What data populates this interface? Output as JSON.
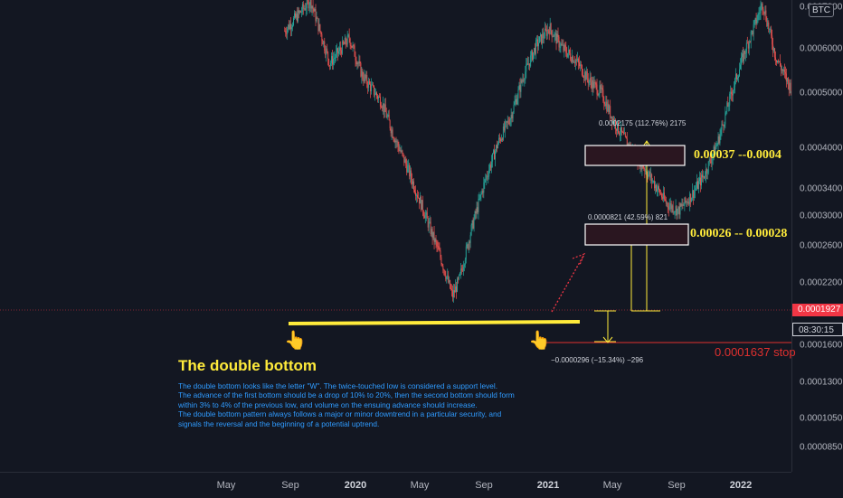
{
  "symbol_badge": "BTC",
  "chart_data": {
    "type": "candlestick",
    "y_axis_scale": "log",
    "ylim": [
      8e-05,
      0.0007
    ],
    "y_ticks": [
      "0.0007000",
      "0.0006000",
      "0.0005000",
      "0.0004000",
      "0.0003400",
      "0.0003000",
      "0.0002600",
      "0.0002200",
      "0.0001600",
      "0.0001300",
      "0.0001050",
      "0.0000850"
    ],
    "x_ticks": [
      {
        "label": "May",
        "bold": false
      },
      {
        "label": "Sep",
        "bold": false
      },
      {
        "label": "2020",
        "bold": true
      },
      {
        "label": "May",
        "bold": false
      },
      {
        "label": "Sep",
        "bold": false
      },
      {
        "label": "2021",
        "bold": true
      },
      {
        "label": "May",
        "bold": false
      },
      {
        "label": "Sep",
        "bold": false
      },
      {
        "label": "2022",
        "bold": true
      }
    ],
    "price_path": [
      [
        0.52,
        0.00062
      ],
      [
        0.6,
        0.00072
      ],
      [
        0.66,
        0.00053
      ],
      [
        0.72,
        0.0006
      ],
      [
        0.76,
        0.0005
      ],
      [
        0.82,
        0.00044
      ],
      [
        0.86,
        0.00037
      ],
      [
        0.9,
        0.00032
      ],
      [
        0.95,
        0.00026
      ],
      [
        1.0,
        0.00021
      ],
      [
        1.04,
        0.000172
      ],
      [
        1.06,
        0.000186
      ],
      [
        1.1,
        0.00024
      ],
      [
        1.14,
        0.0003
      ],
      [
        1.18,
        0.00036
      ],
      [
        1.22,
        0.00041
      ],
      [
        1.26,
        0.0005
      ],
      [
        1.3,
        0.00058
      ],
      [
        1.34,
        0.00063
      ],
      [
        1.38,
        0.00057
      ],
      [
        1.42,
        0.00054
      ],
      [
        1.46,
        0.00049
      ],
      [
        1.5,
        0.00046
      ],
      [
        1.54,
        0.0004
      ],
      [
        1.58,
        0.00036
      ],
      [
        1.62,
        0.00033
      ],
      [
        1.66,
        0.0003
      ],
      [
        1.7,
        0.00027
      ],
      [
        1.74,
        0.00026
      ],
      [
        1.78,
        0.00028
      ],
      [
        1.82,
        0.00031
      ],
      [
        1.86,
        0.00036
      ],
      [
        1.9,
        0.00045
      ],
      [
        1.94,
        0.00055
      ],
      [
        1.98,
        0.00065
      ],
      [
        2.0,
        0.00071
      ],
      [
        2.04,
        0.00055
      ],
      [
        2.08,
        0.00048
      ],
      [
        2.12,
        0.00044
      ],
      [
        2.16,
        0.00042
      ],
      [
        2.2,
        0.00038
      ],
      [
        2.24,
        0.00034
      ],
      [
        2.28,
        0.0003
      ],
      [
        2.32,
        0.00027
      ],
      [
        2.36,
        0.00025
      ],
      [
        2.4,
        0.00021
      ],
      [
        2.44,
        0.000176
      ],
      [
        2.46,
        0.000185
      ],
      [
        2.48,
        0.000193
      ]
    ],
    "last_price": "0.0001927",
    "countdown": "08:30:15"
  },
  "annotations": {
    "title": "The double bottom",
    "description": [
      "The double bottom looks like the letter \"W\". The twice-touched low is considered a support level.",
      "The advance of the first bottom should be a drop of 10% to 20%, then the second bottom should form",
      "within 3% to 4% of the previous low, and volume on the ensuing advance should increase.",
      "The double bottom pattern always follows a major or minor downtrend in a particular security, and",
      "signals the reversal and the beginning of a potential uptrend."
    ],
    "target1_label": "0.00026 -- 0.00028",
    "target2_label": "0.00037 --0.0004",
    "measure1": "0.0000821 (42.59%) 821",
    "measure2": "0.0002175 (112.76%) 2175",
    "stop_measure": "−0.0000296 (−15.34%) −296",
    "stop_label": "0.0001637 stop",
    "hand_icon": "pointing-hand-icon",
    "colors": {
      "support_line": "#ffeb3b",
      "up_candle": "#26a69a",
      "down_candle": "#ef5350",
      "stop_line": "#e0302f",
      "last_price_tag": "#f23645"
    }
  }
}
